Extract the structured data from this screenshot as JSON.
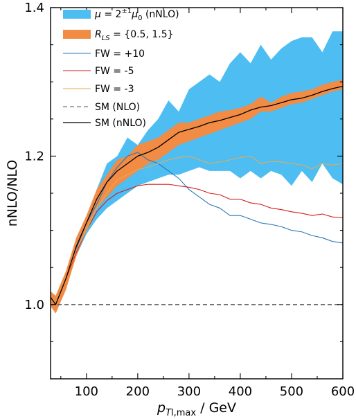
{
  "chart_data": {
    "type": "area",
    "xlabel_parts": {
      "base": "p",
      "sub": "T",
      "sub_rest": "l,max",
      "unit": " / GeV"
    },
    "ylabel": "nNLO/NLO",
    "xlim": [
      30,
      600
    ],
    "ylim": [
      0.9,
      1.4
    ],
    "xticks": [
      100,
      200,
      300,
      400,
      500,
      600
    ],
    "yticks": [
      1.0,
      1.2,
      1.4
    ],
    "ytick_labels": [
      "1.0",
      "1.2",
      "1.4"
    ],
    "reference_line_y": 1.0,
    "colors": {
      "scale_band": "#4dbdf2",
      "rls_band": "#f28b44",
      "fw_plus10": "#2878b8",
      "fw_minus5": "#d21e1e",
      "fw_minus3": "#e6aa5a",
      "sm_nlo": "#555555",
      "sm_nnlo": "#000000"
    },
    "legend": [
      {
        "key": "scale_band",
        "label": "μ = 2^{±1} μ0 (nNLO)",
        "text_main": "μ = 2",
        "text_sup": "±1",
        "text_tail": "μ",
        "text_tail_sub": "0",
        "text_end": " (nNLO)",
        "style": "patch"
      },
      {
        "key": "rls_band",
        "label": "R_LS = {0.5, 1.5}",
        "text_main": "R",
        "text_sub": "LS",
        "text_end": " = {0.5, 1.5}",
        "style": "patch"
      },
      {
        "key": "fw_plus10",
        "label": "FW = +10",
        "style": "line"
      },
      {
        "key": "fw_minus5",
        "label": "FW = -5",
        "style": "line"
      },
      {
        "key": "fw_minus3",
        "label": "FW = -3",
        "style": "line"
      },
      {
        "key": "sm_nlo",
        "label": "SM (NLO)",
        "style": "dash"
      },
      {
        "key": "sm_nnlo",
        "label": "SM (nNLO)",
        "style": "line"
      }
    ],
    "x": [
      30,
      40,
      60,
      80,
      100,
      120,
      140,
      160,
      180,
      200,
      220,
      240,
      260,
      280,
      300,
      320,
      340,
      360,
      380,
      400,
      420,
      440,
      460,
      480,
      500,
      520,
      540,
      560,
      580,
      600
    ],
    "scale_band": {
      "upper": [
        1.013,
        1.005,
        1.04,
        1.085,
        1.115,
        1.155,
        1.19,
        1.2,
        1.225,
        1.215,
        1.235,
        1.25,
        1.275,
        1.26,
        1.29,
        1.3,
        1.31,
        1.3,
        1.325,
        1.34,
        1.325,
        1.35,
        1.33,
        1.345,
        1.355,
        1.36,
        1.36,
        1.34,
        1.368,
        1.368
      ],
      "lower": [
        1.006,
        0.995,
        1.03,
        1.065,
        1.095,
        1.115,
        1.13,
        1.14,
        1.15,
        1.16,
        1.165,
        1.17,
        1.175,
        1.175,
        1.18,
        1.185,
        1.18,
        1.18,
        1.18,
        1.17,
        1.18,
        1.17,
        1.18,
        1.175,
        1.16,
        1.18,
        1.165,
        1.19,
        1.17,
        1.162
      ]
    },
    "rls_band": {
      "upper": [
        1.018,
        1.012,
        1.045,
        1.09,
        1.12,
        1.155,
        1.175,
        1.195,
        1.2,
        1.215,
        1.22,
        1.225,
        1.235,
        1.245,
        1.245,
        1.25,
        1.255,
        1.26,
        1.262,
        1.265,
        1.27,
        1.28,
        1.272,
        1.28,
        1.285,
        1.287,
        1.29,
        1.296,
        1.3,
        1.303
      ],
      "lower": [
        0.998,
        0.988,
        1.02,
        1.065,
        1.1,
        1.13,
        1.145,
        1.16,
        1.17,
        1.18,
        1.19,
        1.195,
        1.205,
        1.215,
        1.22,
        1.225,
        1.23,
        1.235,
        1.24,
        1.245,
        1.25,
        1.26,
        1.26,
        1.265,
        1.27,
        1.272,
        1.277,
        1.282,
        1.287,
        1.29
      ]
    },
    "series": [
      {
        "key": "fw_plus10",
        "name": "FW = +10",
        "values": [
          1.012,
          1.002,
          1.035,
          1.075,
          1.11,
          1.135,
          1.165,
          1.185,
          1.2,
          1.205,
          1.195,
          1.19,
          1.18,
          1.17,
          1.155,
          1.145,
          1.135,
          1.13,
          1.12,
          1.12,
          1.115,
          1.11,
          1.108,
          1.105,
          1.1,
          1.098,
          1.093,
          1.09,
          1.085,
          1.083
        ]
      },
      {
        "key": "fw_minus5",
        "name": "FW = -5",
        "values": [
          1.012,
          1.002,
          1.035,
          1.07,
          1.1,
          1.125,
          1.14,
          1.15,
          1.155,
          1.16,
          1.162,
          1.162,
          1.162,
          1.16,
          1.158,
          1.155,
          1.15,
          1.148,
          1.142,
          1.142,
          1.137,
          1.135,
          1.13,
          1.128,
          1.125,
          1.123,
          1.12,
          1.122,
          1.118,
          1.117
        ]
      },
      {
        "key": "fw_minus3",
        "name": "FW = -3",
        "values": [
          1.012,
          1.002,
          1.036,
          1.073,
          1.1,
          1.13,
          1.15,
          1.168,
          1.175,
          1.182,
          1.185,
          1.19,
          1.195,
          1.198,
          1.2,
          1.195,
          1.19,
          1.192,
          1.195,
          1.198,
          1.2,
          1.19,
          1.193,
          1.192,
          1.19,
          1.188,
          1.183,
          1.19,
          1.188,
          1.19
        ]
      },
      {
        "key": "sm_nnlo",
        "name": "SM (nNLO)",
        "values": [
          1.01,
          1.0,
          1.035,
          1.078,
          1.11,
          1.142,
          1.165,
          1.18,
          1.19,
          1.2,
          1.205,
          1.212,
          1.222,
          1.232,
          1.236,
          1.24,
          1.245,
          1.248,
          1.252,
          1.256,
          1.262,
          1.266,
          1.268,
          1.272,
          1.276,
          1.278,
          1.282,
          1.287,
          1.291,
          1.294
        ]
      }
    ]
  }
}
